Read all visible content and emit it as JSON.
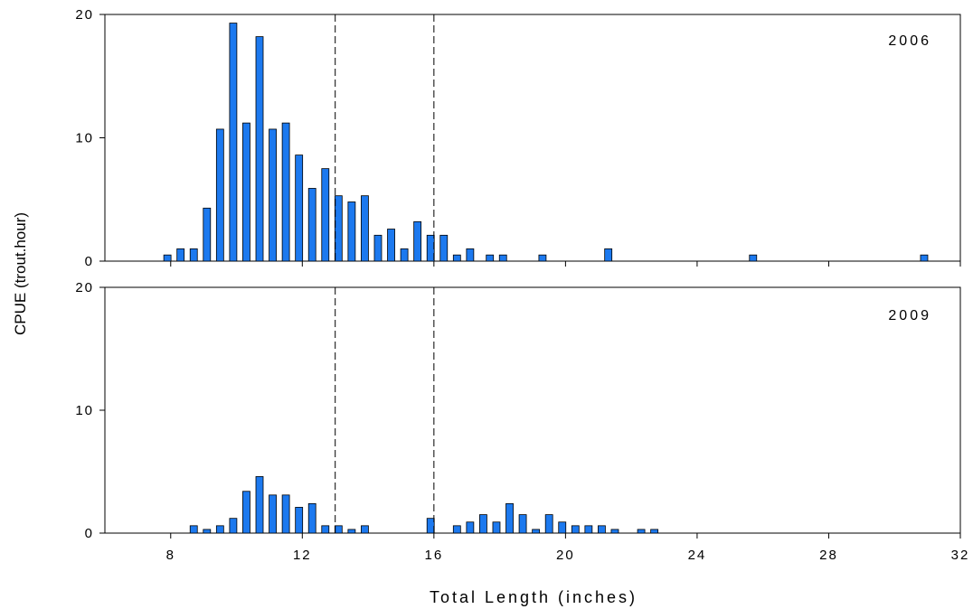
{
  "chart_data": {
    "type": "bar",
    "xlabel": "Total Length (inches)",
    "ylabel": "CPUE (trout.hour)",
    "xlim": [
      6,
      32
    ],
    "x_ticks": [
      8,
      12,
      16,
      20,
      24,
      28,
      32
    ],
    "ylim": [
      0,
      20
    ],
    "y_ticks": [
      0,
      10,
      20
    ],
    "reference_lines_x": [
      13,
      16
    ],
    "bar_color": "#1C79EF",
    "bar_width": 0.22,
    "grid": false,
    "panels": [
      {
        "label": "2006",
        "x": [
          7.9,
          8.3,
          8.7,
          9.1,
          9.5,
          9.9,
          10.3,
          10.7,
          11.1,
          11.5,
          11.9,
          12.3,
          12.7,
          13.1,
          13.5,
          13.9,
          14.3,
          14.7,
          15.1,
          15.5,
          15.9,
          16.3,
          16.7,
          17.1,
          17.7,
          18.1,
          19.3,
          21.3,
          25.7,
          30.9
        ],
        "values": [
          0.5,
          1.0,
          1.0,
          4.3,
          10.7,
          19.3,
          11.2,
          18.2,
          10.7,
          11.2,
          8.6,
          5.9,
          7.5,
          5.3,
          4.8,
          5.3,
          2.1,
          2.6,
          1.0,
          3.2,
          2.1,
          2.1,
          0.5,
          1.0,
          0.5,
          0.5,
          0.5,
          1.0,
          0.5,
          0.5
        ]
      },
      {
        "label": "2009",
        "x": [
          8.7,
          9.1,
          9.5,
          9.9,
          10.3,
          10.7,
          11.1,
          11.5,
          11.9,
          12.3,
          12.7,
          13.1,
          13.5,
          13.9,
          15.9,
          16.7,
          17.1,
          17.5,
          17.9,
          18.3,
          18.7,
          19.1,
          19.5,
          19.9,
          20.3,
          20.7,
          21.1,
          21.5,
          22.3,
          22.7
        ],
        "values": [
          0.6,
          0.3,
          0.6,
          1.2,
          3.4,
          4.6,
          3.1,
          3.1,
          2.1,
          2.4,
          0.6,
          0.6,
          0.3,
          0.6,
          1.2,
          0.6,
          0.9,
          1.5,
          0.9,
          2.4,
          1.5,
          0.3,
          1.5,
          0.9,
          0.6,
          0.6,
          0.6,
          0.3,
          0.3,
          0.3
        ]
      }
    ]
  }
}
